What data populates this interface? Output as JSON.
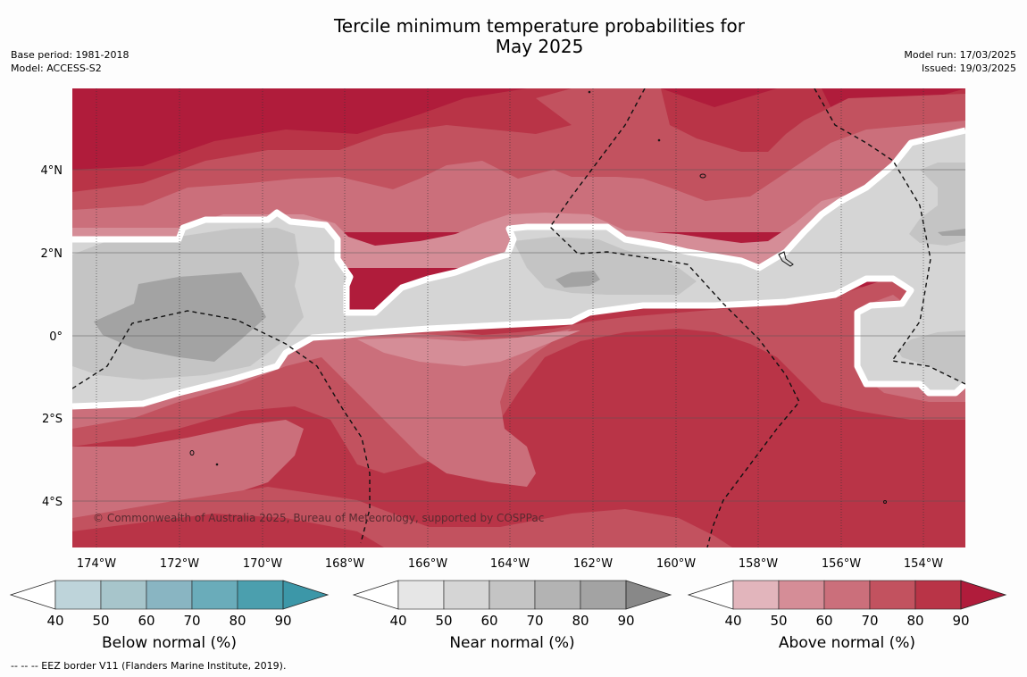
{
  "title": {
    "line1": "Tercile minimum temperature probabilities for",
    "line2": "May 2025"
  },
  "meta": {
    "base_period": "Base period: 1981-2018",
    "model": "Model: ACCESS-S2",
    "model_run": "Model run: 17/03/2025",
    "issued": "Issued: 19/03/2025"
  },
  "map": {
    "lon_labels": [
      "174°W",
      "172°W",
      "170°W",
      "168°W",
      "166°W",
      "164°W",
      "162°W",
      "160°W",
      "158°W",
      "156°W",
      "154°W"
    ],
    "lat_labels": [
      "4°N",
      "2°N",
      "0°",
      "2°S",
      "4°S"
    ],
    "copyright": "© Commonwealth of Australia 2025, Bureau of Meteorology, supported by COSPPac"
  },
  "colorbars": [
    {
      "title": "Below normal (%)",
      "ticks": [
        "40",
        "50",
        "60",
        "70",
        "80",
        "90"
      ],
      "colors": [
        "#bed4da",
        "#a7c5cb",
        "#89b5c2",
        "#6aacba",
        "#4b9fae"
      ],
      "arrow": "#3c97a8"
    },
    {
      "title": "Near normal (%)",
      "ticks": [
        "40",
        "50",
        "60",
        "70",
        "80",
        "90"
      ],
      "colors": [
        "#e6e6e6",
        "#d5d5d5",
        "#c4c4c4",
        "#b3b3b3",
        "#a3a3a3"
      ],
      "arrow": "#888888"
    },
    {
      "title": "Above normal (%)",
      "ticks": [
        "40",
        "50",
        "60",
        "70",
        "80",
        "90"
      ],
      "colors": [
        "#e2b5bc",
        "#d58d97",
        "#cb6f7b",
        "#c2525f",
        "#b93447"
      ],
      "arrow": "#b01c3b"
    }
  ],
  "footer": "--  --  -- EEZ border V11 (Flanders Marine Institute, 2019)."
}
